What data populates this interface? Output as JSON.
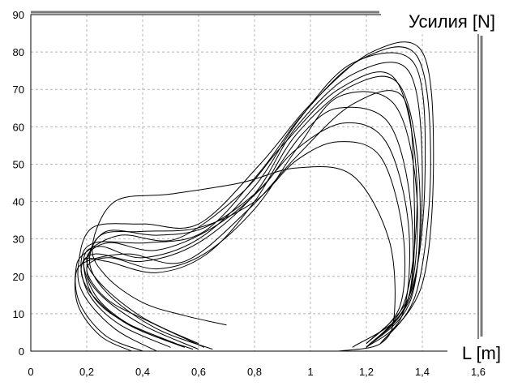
{
  "chart_data": {
    "type": "line",
    "title": "",
    "xlabel": "L [m]",
    "ylabel": "Усилия [N]",
    "xlim": [
      0,
      1.6
    ],
    "ylim": [
      0,
      90
    ],
    "grid": true,
    "x_ticks": [
      0,
      0.2,
      0.4,
      0.6,
      0.8,
      1,
      1.2,
      1.4,
      1.6
    ],
    "x_tick_labels": [
      "0",
      "0,2",
      "0,4",
      "0,6",
      "0,8",
      "1",
      "1,2",
      "1,4",
      "1,6"
    ],
    "y_ticks": [
      0,
      10,
      20,
      30,
      40,
      50,
      60,
      70,
      80,
      90
    ],
    "y_tick_labels": [
      "0",
      "10",
      "20",
      "30",
      "40",
      "50",
      "60",
      "70",
      "80",
      "90"
    ],
    "series": [
      {
        "points": [
          [
            0.7,
            7
          ],
          [
            0.55,
            9.5
          ],
          [
            0.4,
            13
          ],
          [
            0.27,
            20
          ],
          [
            0.22,
            28
          ],
          [
            0.3,
            40
          ],
          [
            0.5,
            42
          ],
          [
            0.75,
            45
          ],
          [
            0.95,
            49
          ],
          [
            1.15,
            47
          ],
          [
            1.28,
            30
          ],
          [
            1.3,
            10
          ],
          [
            1.25,
            2
          ],
          [
            1.1,
            0
          ]
        ]
      },
      {
        "points": [
          [
            0.6,
            0.5
          ],
          [
            0.4,
            7
          ],
          [
            0.25,
            15
          ],
          [
            0.2,
            22
          ],
          [
            0.25,
            31
          ],
          [
            0.4,
            32
          ],
          [
            0.6,
            33
          ],
          [
            0.8,
            40
          ],
          [
            0.95,
            51
          ],
          [
            1.1,
            56
          ],
          [
            1.25,
            52
          ],
          [
            1.33,
            32
          ],
          [
            1.32,
            12
          ],
          [
            1.2,
            2
          ]
        ]
      },
      {
        "points": [
          [
            0.65,
            0.5
          ],
          [
            0.45,
            6
          ],
          [
            0.28,
            15
          ],
          [
            0.21,
            24
          ],
          [
            0.27,
            32
          ],
          [
            0.45,
            31
          ],
          [
            0.62,
            33
          ],
          [
            0.8,
            42
          ],
          [
            0.95,
            54
          ],
          [
            1.12,
            61
          ],
          [
            1.27,
            56
          ],
          [
            1.35,
            34
          ],
          [
            1.33,
            10
          ],
          [
            1.2,
            1
          ]
        ]
      },
      {
        "points": [
          [
            0.6,
            2
          ],
          [
            0.4,
            9
          ],
          [
            0.25,
            18
          ],
          [
            0.2,
            25
          ],
          [
            0.28,
            29
          ],
          [
            0.45,
            27
          ],
          [
            0.65,
            33
          ],
          [
            0.83,
            44
          ],
          [
            0.97,
            58
          ],
          [
            1.1,
            65
          ],
          [
            1.28,
            61
          ],
          [
            1.36,
            38
          ],
          [
            1.34,
            12
          ],
          [
            1.15,
            1
          ]
        ]
      },
      {
        "points": [
          [
            0.62,
            1
          ],
          [
            0.42,
            8
          ],
          [
            0.27,
            14
          ],
          [
            0.2,
            22
          ],
          [
            0.28,
            25
          ],
          [
            0.45,
            22
          ],
          [
            0.62,
            26
          ],
          [
            0.8,
            38
          ],
          [
            0.95,
            54
          ],
          [
            1.1,
            68
          ],
          [
            1.3,
            66
          ],
          [
            1.38,
            42
          ],
          [
            1.35,
            14
          ],
          [
            1.2,
            1
          ]
        ]
      },
      {
        "points": [
          [
            0.58,
            0.5
          ],
          [
            0.38,
            6
          ],
          [
            0.24,
            14
          ],
          [
            0.19,
            24
          ],
          [
            0.27,
            24
          ],
          [
            0.45,
            21
          ],
          [
            0.63,
            26
          ],
          [
            0.8,
            40
          ],
          [
            0.95,
            58
          ],
          [
            1.15,
            71
          ],
          [
            1.32,
            71
          ],
          [
            1.39,
            45
          ],
          [
            1.36,
            14
          ],
          [
            1.2,
            1
          ]
        ]
      },
      {
        "points": [
          [
            0.55,
            1
          ],
          [
            0.35,
            7
          ],
          [
            0.22,
            15
          ],
          [
            0.18,
            22
          ],
          [
            0.23,
            26
          ],
          [
            0.4,
            24
          ],
          [
            0.6,
            29
          ],
          [
            0.8,
            42
          ],
          [
            0.95,
            60
          ],
          [
            1.15,
            74
          ],
          [
            1.35,
            75
          ],
          [
            1.4,
            48
          ],
          [
            1.36,
            15
          ],
          [
            1.2,
            1
          ]
        ]
      },
      {
        "points": [
          [
            0.52,
            2
          ],
          [
            0.33,
            8
          ],
          [
            0.22,
            15
          ],
          [
            0.19,
            25
          ],
          [
            0.25,
            28
          ],
          [
            0.4,
            25
          ],
          [
            0.6,
            30
          ],
          [
            0.8,
            44
          ],
          [
            0.96,
            62
          ],
          [
            1.15,
            77
          ],
          [
            1.37,
            77
          ],
          [
            1.41,
            48
          ],
          [
            1.36,
            16
          ],
          [
            1.2,
            2
          ]
        ]
      },
      {
        "points": [
          [
            0.5,
            1
          ],
          [
            0.32,
            7
          ],
          [
            0.21,
            15
          ],
          [
            0.18,
            24
          ],
          [
            0.23,
            29
          ],
          [
            0.42,
            29
          ],
          [
            0.62,
            32
          ],
          [
            0.82,
            48
          ],
          [
            0.98,
            64
          ],
          [
            1.18,
            78
          ],
          [
            1.38,
            79
          ],
          [
            1.43,
            50
          ],
          [
            1.38,
            16
          ],
          [
            1.25,
            2
          ]
        ]
      },
      {
        "points": [
          [
            0.45,
            0
          ],
          [
            0.3,
            6
          ],
          [
            0.19,
            15
          ],
          [
            0.17,
            23
          ],
          [
            0.22,
            33
          ],
          [
            0.4,
            34
          ],
          [
            0.6,
            34
          ],
          [
            0.82,
            50
          ],
          [
            1.0,
            66
          ],
          [
            1.22,
            80
          ],
          [
            1.4,
            80
          ],
          [
            1.44,
            52
          ],
          [
            1.4,
            18
          ],
          [
            1.25,
            2
          ]
        ]
      },
      {
        "points": [
          [
            0.4,
            0
          ],
          [
            0.27,
            4
          ],
          [
            0.18,
            12
          ],
          [
            0.16,
            20
          ],
          [
            0.2,
            24
          ],
          [
            0.35,
            26
          ],
          [
            0.55,
            24
          ],
          [
            0.78,
            38
          ],
          [
            0.95,
            52
          ],
          [
            1.15,
            66
          ],
          [
            1.33,
            68
          ],
          [
            1.37,
            44
          ],
          [
            1.35,
            14
          ],
          [
            1.2,
            1
          ]
        ]
      },
      {
        "points": [
          [
            0.36,
            0
          ],
          [
            0.25,
            4
          ],
          [
            0.17,
            12
          ],
          [
            0.16,
            21
          ],
          [
            0.19,
            26
          ],
          [
            0.32,
            31
          ],
          [
            0.52,
            30
          ],
          [
            0.75,
            42
          ],
          [
            0.9,
            55
          ],
          [
            1.1,
            70
          ],
          [
            1.3,
            73
          ],
          [
            1.38,
            46
          ],
          [
            1.34,
            14
          ],
          [
            1.2,
            1
          ]
        ]
      }
    ]
  }
}
